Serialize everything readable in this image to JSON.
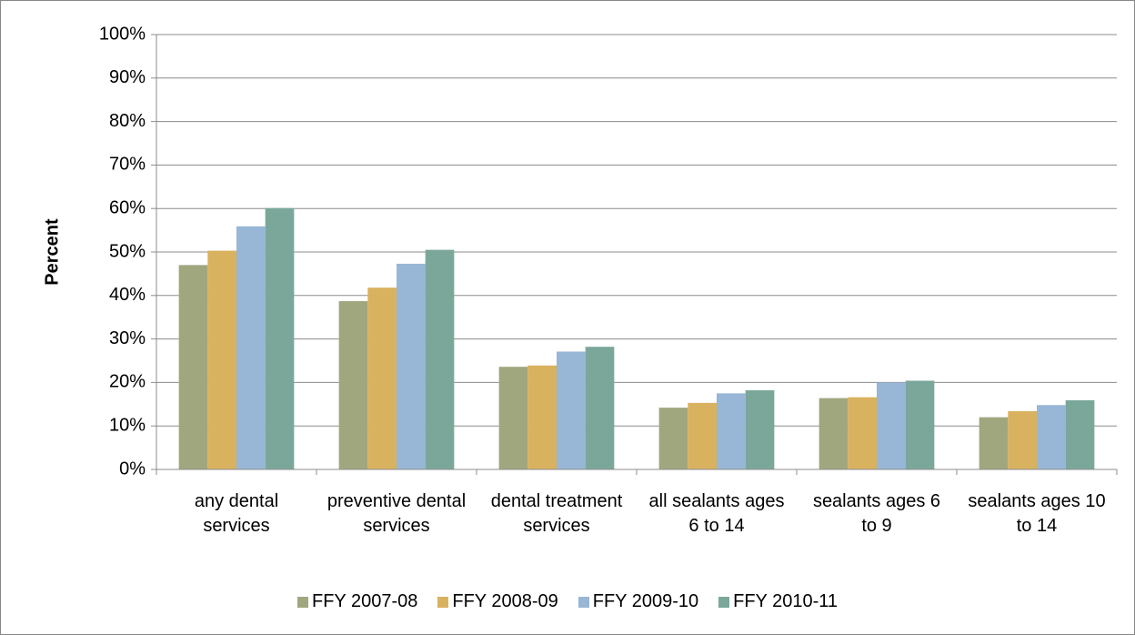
{
  "chart_data": {
    "type": "bar",
    "y_label": "Percent",
    "categories": [
      "any dental services",
      "preventive dental services",
      "dental treatment services",
      "all sealants ages 6 to 14",
      "sealants ages 6 to 9",
      "sealants ages 10 to 14"
    ],
    "series": [
      {
        "name": "FFY 2007-08",
        "color": "#a0a77f",
        "values": [
          47.0,
          38.7,
          23.6,
          14.2,
          16.4,
          12.0
        ]
      },
      {
        "name": "FFY 2008-09",
        "color": "#d9b25f",
        "values": [
          50.3,
          41.8,
          23.9,
          15.3,
          16.6,
          13.4
        ]
      },
      {
        "name": "FFY 2009-10",
        "color": "#98b6d6",
        "values": [
          55.9,
          47.3,
          27.1,
          17.5,
          20.0,
          14.8
        ]
      },
      {
        "name": "FFY 2010-11",
        "color": "#7ba79b",
        "values": [
          60.1,
          50.5,
          28.2,
          18.2,
          20.4,
          15.9
        ]
      }
    ],
    "ylim": [
      0,
      100
    ],
    "yticks": [
      {
        "value": 0,
        "label": "0%"
      },
      {
        "value": 10,
        "label": "10%"
      },
      {
        "value": 20,
        "label": "20%"
      },
      {
        "value": 30,
        "label": "30%"
      },
      {
        "value": 40,
        "label": "40%"
      },
      {
        "value": 50,
        "label": "50%"
      },
      {
        "value": 60,
        "label": "60%"
      },
      {
        "value": 70,
        "label": "70%"
      },
      {
        "value": 80,
        "label": "80%"
      },
      {
        "value": 90,
        "label": "90%"
      },
      {
        "value": 100,
        "label": "100%"
      }
    ],
    "grid": true,
    "legend": "bottom"
  }
}
